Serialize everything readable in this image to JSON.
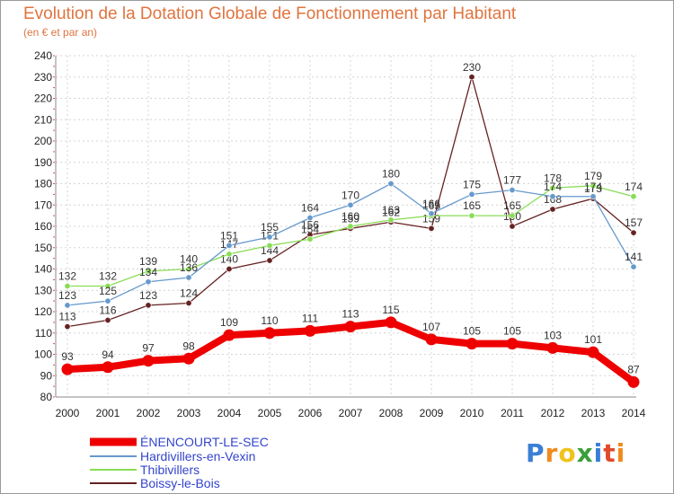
{
  "chart_data": {
    "type": "line",
    "title": "Evolution de la Dotation Globale de Fonctionnement par Habitant",
    "subtitle": "(en € et par an)",
    "x": [
      "2000",
      "2001",
      "2002",
      "2003",
      "2004",
      "2005",
      "2006",
      "2007",
      "2008",
      "2009",
      "2010",
      "2011",
      "2012",
      "2013",
      "2014"
    ],
    "ylim": [
      80,
      240
    ],
    "yticks": [
      80,
      90,
      100,
      110,
      120,
      130,
      140,
      150,
      160,
      170,
      180,
      190,
      200,
      210,
      220,
      230,
      240
    ],
    "grid": true,
    "series": [
      {
        "name": "ÉNENCOURT-LE-SEC",
        "color": "#ee0000",
        "values": [
          93,
          94,
          97,
          98,
          109,
          110,
          111,
          113,
          115,
          107,
          105,
          105,
          103,
          101,
          87
        ]
      },
      {
        "name": "Hardivillers-en-Vexin",
        "color": "#6699cc",
        "values": [
          123,
          125,
          134,
          136,
          151,
          155,
          164,
          170,
          180,
          166,
          175,
          177,
          174,
          174,
          141
        ]
      },
      {
        "name": "Thibivillers",
        "color": "#88dd55",
        "values": [
          132,
          132,
          139,
          140,
          147,
          151,
          154,
          160,
          163,
          165,
          165,
          165,
          178,
          179,
          174
        ]
      },
      {
        "name": "Boissy-le-Bois",
        "color": "#662222",
        "values": [
          113,
          116,
          123,
          124,
          140,
          144,
          156,
          159,
          162,
          159,
          230,
          160,
          168,
          173,
          157
        ]
      }
    ]
  },
  "logo": {
    "text": "Proxiti",
    "letters": [
      "P",
      "r",
      "o",
      "x",
      "i",
      "t",
      "i"
    ],
    "colors": [
      "#3a7fd5",
      "#f08a1c",
      "#f0c21c",
      "#3a9f3a",
      "#3a7fd5",
      "#e04a2a",
      "#f08a1c"
    ]
  }
}
